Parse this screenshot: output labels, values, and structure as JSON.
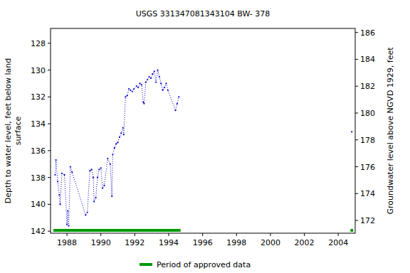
{
  "chart_data": {
    "type": "line",
    "title": "USGS 331347081343104 BW- 378",
    "ylabel": [
      "Depth to water level, feet below land",
      "surface"
    ],
    "y2label": "Groundwater level above NGVD 1929, feet",
    "xlim": [
      1987.03,
      2005.0
    ],
    "xticks": [
      1988,
      1990,
      1992,
      1994,
      1996,
      1998,
      2000,
      2002,
      2004
    ],
    "ylim": [
      142.15,
      126.9
    ],
    "yticks": [
      128,
      130,
      132,
      134,
      136,
      138,
      140,
      142
    ],
    "y2lim": [
      171.05,
      186.3
    ],
    "y2ticks": [
      172,
      174,
      176,
      178,
      180,
      182,
      184,
      186
    ],
    "grid": false,
    "series": [
      {
        "name": "Depth to water level",
        "color": "#0000cc",
        "marker": "point",
        "line_style": "dotted",
        "x": [
          1987.3,
          1987.35,
          1987.45,
          1987.55,
          1987.6,
          1987.7,
          1987.85,
          1988.0,
          1988.05,
          1988.1,
          1988.2,
          1988.3,
          1989.1,
          1989.2,
          1989.35,
          1989.45,
          1989.55,
          1989.6,
          1989.7,
          1989.8,
          1989.9,
          1990.0,
          1990.1,
          1990.2,
          1990.4,
          1990.55,
          1990.65,
          1990.7,
          1990.8,
          1990.9,
          1991.0,
          1991.1,
          1991.2,
          1991.3,
          1991.35,
          1991.45,
          1991.55,
          1991.65,
          1991.75,
          1991.85,
          1991.95,
          1992.1,
          1992.2,
          1992.3,
          1992.4,
          1992.5,
          1992.55,
          1992.65,
          1992.75,
          1992.85,
          1992.95,
          1993.05,
          1993.15,
          1993.25,
          1993.35,
          1993.45,
          1993.55,
          1993.65,
          1993.75,
          1993.85,
          1993.95,
          1994.4,
          1994.5,
          1994.6,
          null,
          2004.8
        ],
        "values": [
          137.8,
          136.7,
          138.3,
          139.3,
          140.0,
          137.7,
          137.8,
          141.5,
          140.5,
          141.6,
          137.2,
          137.6,
          140.8,
          140.6,
          137.5,
          137.4,
          138.0,
          139.8,
          139.5,
          138.0,
          137.4,
          137.3,
          138.8,
          138.6,
          136.6,
          137.0,
          139.4,
          136.3,
          135.8,
          135.5,
          135.4,
          135.0,
          134.7,
          134.3,
          134.8,
          132.0,
          131.9,
          131.4,
          131.5,
          131.6,
          131.4,
          131.2,
          131.3,
          131.0,
          131.1,
          132.4,
          132.5,
          130.9,
          130.7,
          130.5,
          130.6,
          130.3,
          130.1,
          130.9,
          130.0,
          130.5,
          131.0,
          131.5,
          131.3,
          131.0,
          131.5,
          133.0,
          132.5,
          132.0,
          null,
          134.6
        ]
      }
    ],
    "approved": {
      "name": "Period of approved data",
      "color": "#009900",
      "periods": [
        [
          1987.2,
          1994.7
        ],
        [
          2004.72,
          2004.88
        ]
      ]
    },
    "legend": "bottom"
  }
}
